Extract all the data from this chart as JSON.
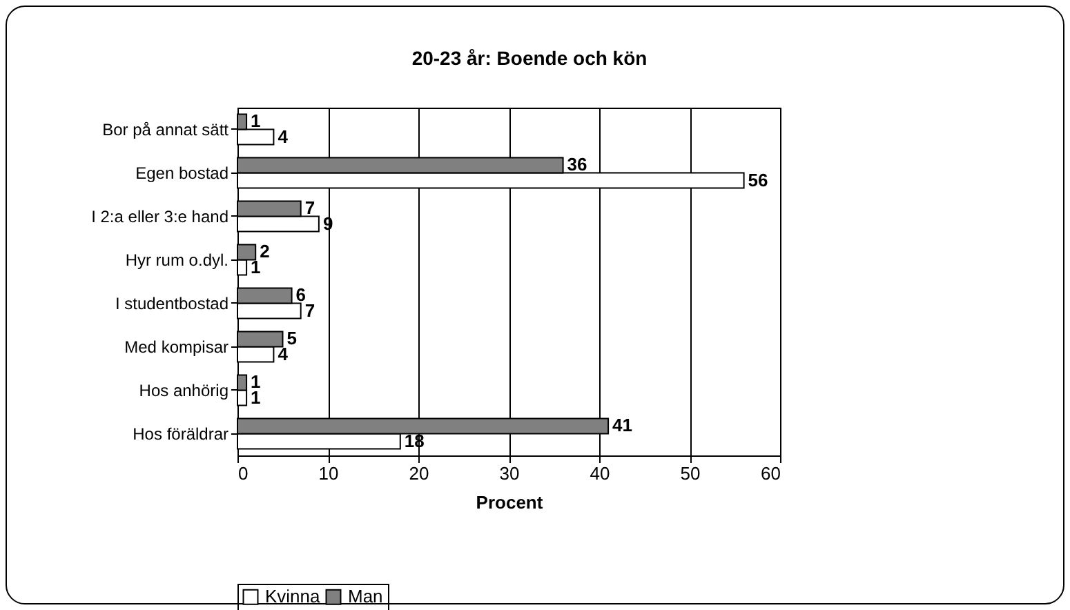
{
  "chart_data": {
    "type": "bar",
    "orientation": "horizontal",
    "title": "20-23 år: Boende och kön",
    "xlabel": "Procent",
    "categories": [
      "Bor på annat sätt",
      "Egen bostad",
      "I 2:a eller 3:e hand",
      "Hyr rum o.dyl.",
      "I studentbostad",
      "Med kompisar",
      "Hos anhörig",
      "Hos föräldrar"
    ],
    "series": [
      {
        "name": "Kvinna",
        "color": "#ffffff",
        "values": [
          4,
          56,
          9,
          1,
          7,
          4,
          1,
          18
        ]
      },
      {
        "name": "Man",
        "color": "#808080",
        "values": [
          1,
          36,
          7,
          2,
          6,
          5,
          1,
          41
        ]
      }
    ],
    "xlim": [
      0,
      60
    ],
    "xticks": [
      0,
      10,
      20,
      30,
      40,
      50,
      60
    ],
    "grid": "x",
    "legend": "bottom",
    "data_labels": true
  }
}
